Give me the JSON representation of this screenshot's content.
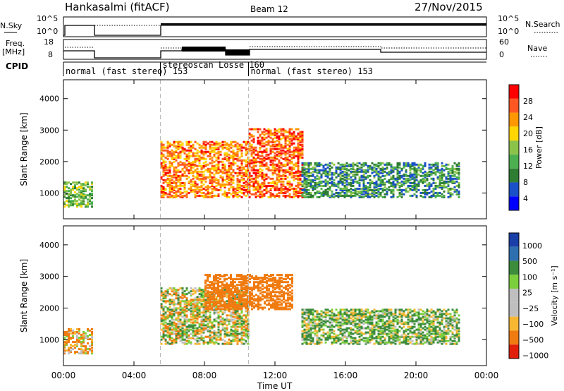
{
  "header": {
    "station": "Hankasalmi (fitACF)",
    "beam": "Beam 12",
    "date": "27/Nov/2015"
  },
  "panels": {
    "noise": {
      "left_label": "N.Sky",
      "right_label": "N.Search",
      "left_ticks": [
        "10^5",
        "10^0"
      ],
      "right_ticks": [
        "10^5",
        "10^0"
      ]
    },
    "freq": {
      "left_label_1": "Freq.",
      "left_label_2": "[MHz]",
      "right_label": "Nave",
      "left_ticks": [
        "18",
        "8"
      ],
      "right_ticks": [
        "60",
        "0"
      ]
    },
    "cpid": {
      "label": "CPID",
      "segments": [
        {
          "text": "normal (fast stereo) 153",
          "start": 0.0
        },
        {
          "text": "stereoscan Losse 160",
          "start": 5.5
        },
        {
          "text": "normal (fast stereo) 153",
          "start": 10.5
        }
      ]
    }
  },
  "colorbars": {
    "power": {
      "label": "Power [dB]",
      "ticks": [
        4,
        8,
        12,
        16,
        20,
        24,
        28
      ]
    },
    "velocity": {
      "label": "Velocity  [m s⁻¹]",
      "ticks": [
        "1000",
        "500",
        "100",
        "25",
        "−25",
        "−100",
        "−500",
        "−1000"
      ]
    }
  },
  "chart_data": [
    {
      "type": "heatmap",
      "name_shown": "Power",
      "ylabel": "Slant Range [km]",
      "xlabel": "Time UT",
      "x_ticks": [
        "00:00",
        "04:00",
        "08:00",
        "12:00",
        "16:00",
        "20:00",
        "00:00"
      ],
      "y_ticks": [
        1000,
        2000,
        3000,
        4000
      ],
      "xlim_hours": [
        0,
        24
      ],
      "ylim_km": [
        180,
        4600
      ],
      "regions": [
        {
          "t": [
            0.0,
            1.6
          ],
          "r": [
            600,
            1400
          ],
          "level": 12
        },
        {
          "t": [
            5.5,
            10.5
          ],
          "r": [
            900,
            2700
          ],
          "level": 22
        },
        {
          "t": [
            10.5,
            13.5
          ],
          "r": [
            900,
            3100
          ],
          "level": 24
        },
        {
          "t": [
            13.5,
            22.5
          ],
          "r": [
            900,
            2000
          ],
          "level": 8
        }
      ]
    },
    {
      "type": "heatmap",
      "name_shown": "Velocity",
      "ylabel": "Slant Range [km]",
      "xlabel": "Time UT",
      "x_ticks": [
        "00:00",
        "04:00",
        "08:00",
        "12:00",
        "16:00",
        "20:00",
        "00:00"
      ],
      "y_ticks": [
        1000,
        2000,
        3000,
        4000
      ],
      "xlim_hours": [
        0,
        24
      ],
      "ylim_km": [
        180,
        4600
      ],
      "regions": [
        {
          "t": [
            0.0,
            1.6
          ],
          "r": [
            600,
            1400
          ],
          "vel": -100
        },
        {
          "t": [
            5.5,
            10.5
          ],
          "r": [
            900,
            2700
          ],
          "vel": 0
        },
        {
          "t": [
            8.0,
            13.0
          ],
          "r": [
            2000,
            3100
          ],
          "vel": -300
        },
        {
          "t": [
            13.5,
            22.5
          ],
          "r": [
            900,
            2000
          ],
          "vel": 100
        }
      ]
    }
  ]
}
